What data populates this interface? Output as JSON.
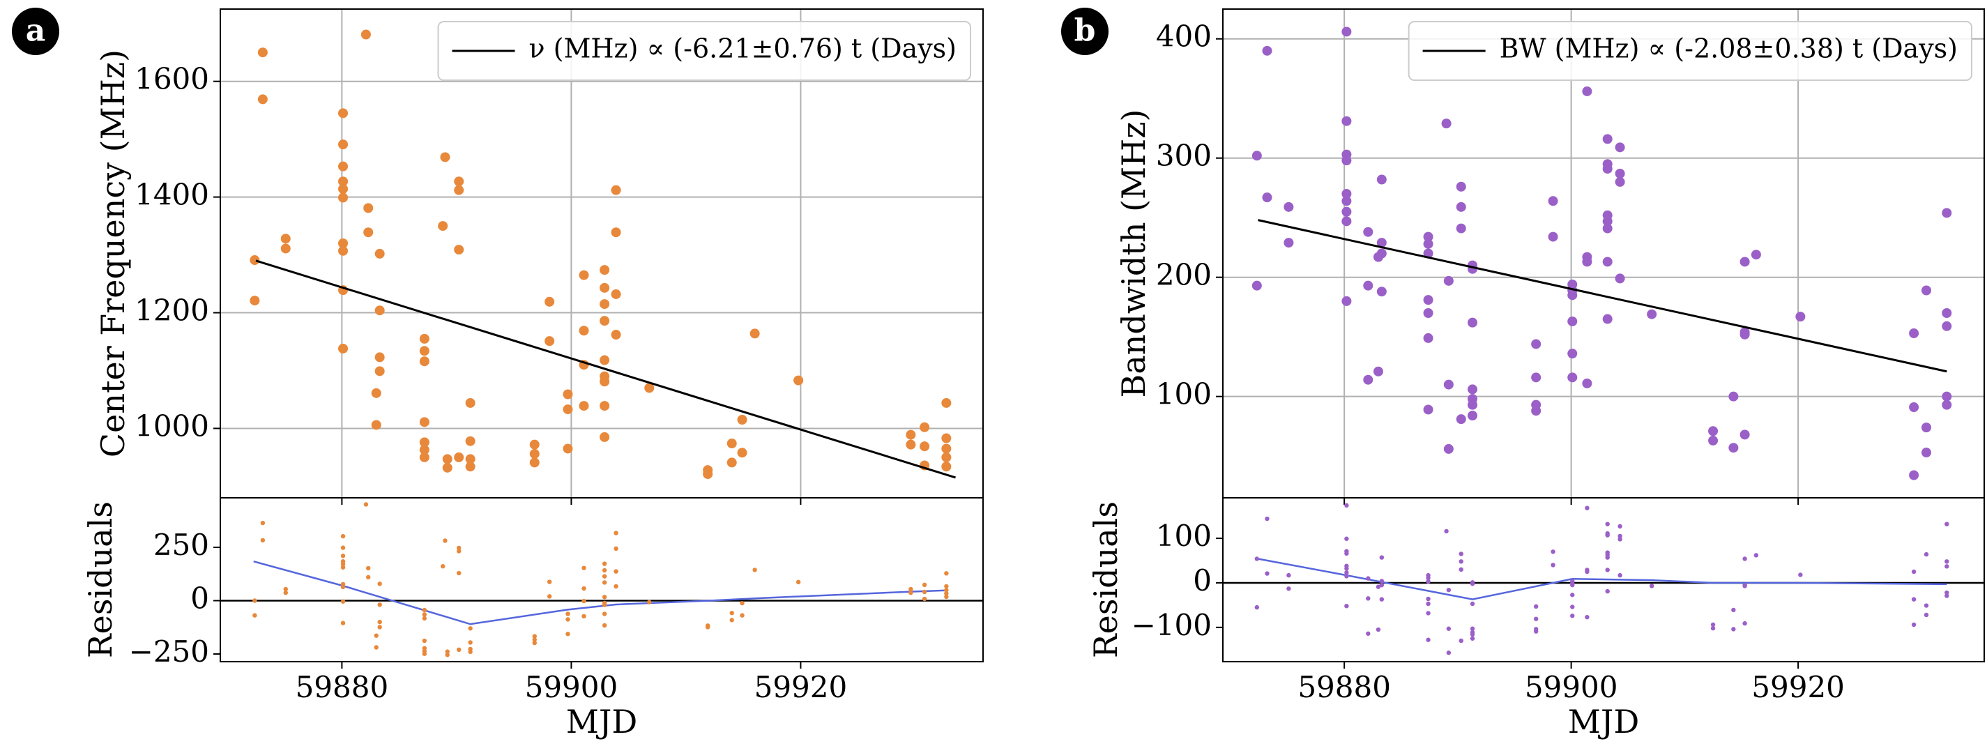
{
  "chart_data": [
    {
      "type": "scatter",
      "panel_label": "a",
      "ylabel": "Center Frequency (MHz)",
      "color": "#e8883a",
      "grid": true,
      "legend": "upper right",
      "xlim": [
        59869.4,
        59935.9
      ],
      "xticks": [
        59880,
        59900,
        59920
      ],
      "ylim": [
        880,
        1725
      ],
      "yticks": [
        1000,
        1200,
        1400,
        1600
      ],
      "x": [
        59872.4,
        59872.4,
        59873.1,
        59873.1,
        59875.1,
        59875.1,
        59882.1,
        59880.1,
        59880.1,
        59880.1,
        59880.1,
        59880.1,
        59880.1,
        59880.1,
        59880.1,
        59880.1,
        59880.1,
        59882.3,
        59882.3,
        59883.3,
        59883.3,
        59883.3,
        59883.3,
        59883,
        59883,
        59887.2,
        59887.2,
        59887.2,
        59887.2,
        59887.2,
        59887.2,
        59887.2,
        59888.8,
        59889,
        59889.2,
        59889.2,
        59890.2,
        59890.2,
        59890.2,
        59890.2,
        59891.2,
        59891.2,
        59891.2,
        59891.2,
        59896.8,
        59896.8,
        59896.8,
        59898.1,
        59898.1,
        59899.7,
        59899.7,
        59899.7,
        59901.1,
        59901.1,
        59901.1,
        59901.1,
        59902.9,
        59902.9,
        59902.9,
        59902.9,
        59902.9,
        59902.9,
        59902.9,
        59902.9,
        59902.9,
        59903.9,
        59903.9,
        59903.9,
        59903.9,
        59906.8,
        59911.9,
        59911.9,
        59914,
        59914,
        59914.9,
        59914.9,
        59916,
        59919.8,
        59929.6,
        59929.6,
        59930.8,
        59930.8,
        59930.8,
        59932.7,
        59932.7,
        59932.7,
        59932.7,
        59932.7
      ],
      "values": [
        1291,
        1221,
        1650,
        1569,
        1328,
        1311,
        1681,
        1545,
        1491,
        1453,
        1427,
        1414,
        1399,
        1320,
        1307,
        1239,
        1138,
        1381,
        1339,
        1302,
        1204,
        1123,
        1099,
        1061,
        1006,
        1155,
        1134,
        1116,
        1011,
        976,
        963,
        950,
        1350,
        1469,
        947,
        932,
        1427,
        1412,
        1309,
        950,
        1044,
        978,
        947,
        934,
        972,
        956,
        941,
        1219,
        1151,
        1059,
        1033,
        965,
        1265,
        1169,
        1110,
        1039,
        1274,
        1243,
        1215,
        1186,
        1118,
        1090,
        1081,
        1039,
        985,
        1412,
        1339,
        1232,
        1162,
        1070,
        928,
        921,
        941,
        974,
        1015,
        958,
        1164,
        1083,
        989,
        972,
        1002,
        969,
        936,
        1044,
        983,
        965,
        950,
        934
      ],
      "fit": {
        "name": "ν (MHz) ∝ (-6.21±0.76) t (Days)",
        "color": "#000000",
        "x": [
          59872.5,
          59933.5
        ],
        "values": [
          1290,
          915
        ]
      }
    },
    {
      "type": "scatter",
      "ylabel": "Residuals",
      "xlabel": "MJD",
      "color": "#e8883a",
      "grid": false,
      "xlim": [
        59869.4,
        59935.9
      ],
      "xticks": [
        59880,
        59900,
        59920
      ],
      "ylim": [
        -286,
        482
      ],
      "yticks": [
        {
          "value": -250,
          "label": "−250"
        },
        0,
        250
      ],
      "x": [
        59872.4,
        59872.4,
        59873.1,
        59873.1,
        59875.1,
        59875.1,
        59882.1,
        59880.1,
        59880.1,
        59880.1,
        59880.1,
        59880.1,
        59880.1,
        59880.1,
        59880.1,
        59880.1,
        59880.1,
        59882.3,
        59882.3,
        59883.3,
        59883.3,
        59883.3,
        59883.3,
        59883,
        59883,
        59887.2,
        59887.2,
        59887.2,
        59887.2,
        59887.2,
        59887.2,
        59887.2,
        59888.8,
        59889,
        59889.2,
        59889.2,
        59890.2,
        59890.2,
        59890.2,
        59890.2,
        59891.2,
        59891.2,
        59891.2,
        59891.2,
        59896.8,
        59896.8,
        59896.8,
        59898.1,
        59898.1,
        59899.7,
        59899.7,
        59899.7,
        59901.1,
        59901.1,
        59901.1,
        59901.1,
        59902.9,
        59902.9,
        59902.9,
        59902.9,
        59902.9,
        59902.9,
        59902.9,
        59902.9,
        59902.9,
        59903.9,
        59903.9,
        59903.9,
        59903.9,
        59906.8,
        59911.9,
        59911.9,
        59914,
        59914,
        59914.9,
        59914.9,
        59916,
        59919.8,
        59929.6,
        59929.6,
        59930.8,
        59930.8,
        59930.8,
        59932.7,
        59932.7,
        59932.7,
        59932.7,
        59932.7
      ],
      "values": [
        0,
        -69,
        364,
        283,
        54,
        37,
        451,
        302,
        248,
        210,
        184,
        171,
        156,
        77,
        64,
        -4,
        -105,
        152,
        110,
        79,
        -19,
        -100,
        -124,
        -164,
        -219,
        -44,
        -65,
        -83,
        -188,
        -223,
        -236,
        -249,
        161,
        281,
        -239,
        -254,
        247,
        232,
        129,
        -230,
        -130,
        -196,
        -227,
        -240,
        -167,
        -183,
        -198,
        88,
        20,
        -62,
        -88,
        -156,
        153,
        57,
        -2,
        -73,
        173,
        142,
        114,
        85,
        17,
        -11,
        -20,
        -62,
        -116,
        317,
        244,
        137,
        67,
        -7,
        -117,
        -124,
        -91,
        -58,
        -12,
        -69,
        144,
        87,
        54,
        37,
        74,
        41,
        8,
        128,
        67,
        49,
        34,
        18
      ],
      "trend": {
        "color": "#5566dd",
        "x": [
          59872.3,
          59880,
          59891.2,
          59899.7,
          59903.9,
          59912,
          59916.5,
          59929.6,
          59932.7
        ],
        "values": [
          184,
          71,
          -110,
          -42,
          -18,
          0,
          12,
          42,
          48
        ]
      }
    },
    {
      "type": "scatter",
      "panel_label": "b",
      "ylabel": "Bandwidth (MHz)",
      "color": "#9b5fc8",
      "grid": true,
      "legend": "upper right",
      "xlim": [
        59869.3,
        59936.4
      ],
      "xticks": [
        59880,
        59900,
        59920
      ],
      "ylim": [
        15,
        425
      ],
      "yticks": [
        100,
        200,
        300,
        400
      ],
      "x": [
        59872.3,
        59872.3,
        59873.2,
        59873.2,
        59875.1,
        59875.1,
        59880.2,
        59880.2,
        59880.2,
        59880.2,
        59880.2,
        59880.2,
        59880.2,
        59880.2,
        59880.2,
        59882.1,
        59882.1,
        59882.1,
        59883,
        59883.3,
        59883.3,
        59883.3,
        59883.3,
        59883,
        59887.4,
        59887.4,
        59887.4,
        59887.4,
        59887.4,
        59887.4,
        59887.4,
        59889,
        59889.2,
        59889.2,
        59889.2,
        59890.3,
        59890.3,
        59890.3,
        59890.3,
        59891.3,
        59891.3,
        59891.3,
        59891.3,
        59891.3,
        59891.3,
        59891.3,
        59896.9,
        59896.9,
        59896.9,
        59896.9,
        59898.4,
        59898.4,
        59900.1,
        59900.1,
        59900.1,
        59900.1,
        59900.1,
        59900.1,
        59901.4,
        59901.4,
        59901.4,
        59901.4,
        59903.2,
        59903.2,
        59903.2,
        59903.2,
        59903.2,
        59903.2,
        59903.2,
        59903.2,
        59904.3,
        59904.3,
        59904.3,
        59904.3,
        59907.1,
        59912.5,
        59912.5,
        59914.3,
        59914.3,
        59915.3,
        59915.3,
        59915.3,
        59915.3,
        59916.3,
        59920.2,
        59930.2,
        59930.2,
        59930.2,
        59931.3,
        59931.3,
        59931.3,
        59933.1,
        59933.1,
        59933.1,
        59933.1,
        59933.1
      ],
      "values": [
        302,
        193,
        390,
        267,
        259,
        229,
        406,
        331,
        303,
        298,
        270,
        264,
        255,
        247,
        180,
        238,
        193,
        114,
        121,
        282,
        229,
        220,
        188,
        217,
        234,
        228,
        220,
        181,
        170,
        149,
        89,
        329,
        197,
        110,
        56,
        276,
        259,
        241,
        81,
        210,
        207,
        162,
        106,
        98,
        93,
        84,
        144,
        116,
        93,
        88,
        264,
        234,
        194,
        189,
        185,
        163,
        136,
        116,
        217,
        213,
        111,
        356,
        316,
        295,
        291,
        252,
        247,
        241,
        213,
        165,
        309,
        287,
        280,
        199,
        169,
        71,
        63,
        100,
        57,
        213,
        154,
        152,
        68,
        219,
        167,
        153,
        91,
        34,
        189,
        74,
        53,
        254,
        170,
        159,
        100,
        93
      ],
      "fit": {
        "name": "BW (MHz) ∝ (-2.08±0.38) t (Days)",
        "color": "#000000",
        "x": [
          59872.4,
          59933.1
        ],
        "values": [
          248,
          121
        ]
      }
    },
    {
      "type": "scatter",
      "ylabel": "Residuals",
      "xlabel": "MJD",
      "color": "#9b5fc8",
      "grid": false,
      "xlim": [
        59869.3,
        59936.4
      ],
      "xticks": [
        59880,
        59900,
        59920
      ],
      "ylim": [
        -177,
        191
      ],
      "yticks": [
        {
          "value": -100,
          "label": "−100"
        },
        0,
        100
      ],
      "x": [
        59872.3,
        59872.3,
        59873.2,
        59873.2,
        59875.1,
        59875.1,
        59880.2,
        59880.2,
        59880.2,
        59880.2,
        59880.2,
        59880.2,
        59880.2,
        59880.2,
        59880.2,
        59882.1,
        59882.1,
        59882.1,
        59883,
        59883.3,
        59883.3,
        59883.3,
        59883.3,
        59883,
        59887.4,
        59887.4,
        59887.4,
        59887.4,
        59887.4,
        59887.4,
        59887.4,
        59889,
        59889.2,
        59889.2,
        59889.2,
        59890.3,
        59890.3,
        59890.3,
        59890.3,
        59891.3,
        59891.3,
        59891.3,
        59891.3,
        59891.3,
        59891.3,
        59891.3,
        59896.9,
        59896.9,
        59896.9,
        59896.9,
        59898.4,
        59898.4,
        59900.1,
        59900.1,
        59900.1,
        59900.1,
        59900.1,
        59900.1,
        59901.4,
        59901.4,
        59901.4,
        59901.4,
        59903.2,
        59903.2,
        59903.2,
        59903.2,
        59903.2,
        59903.2,
        59903.2,
        59903.2,
        59904.3,
        59904.3,
        59904.3,
        59904.3,
        59907.1,
        59912.5,
        59912.5,
        59914.3,
        59914.3,
        59915.3,
        59915.3,
        59915.3,
        59915.3,
        59916.3,
        59920.2,
        59930.2,
        59930.2,
        59930.2,
        59931.3,
        59931.3,
        59931.3,
        59933.1,
        59933.1,
        59933.1,
        59933.1,
        59933.1
      ],
      "values": [
        54,
        -55,
        144,
        21,
        17,
        -13,
        174,
        99,
        71,
        66,
        38,
        32,
        23,
        15,
        -52,
        10,
        -35,
        -114,
        -105,
        57,
        4,
        -5,
        -37,
        -9,
        17,
        11,
        3,
        -36,
        -47,
        -68,
        -128,
        116,
        -16,
        -103,
        -157,
        65,
        48,
        30,
        -130,
        1,
        -2,
        -47,
        -103,
        -111,
        -116,
        -125,
        -53,
        -81,
        -104,
        -109,
        70,
        40,
        4,
        -1,
        -5,
        -27,
        -54,
        -74,
        29,
        25,
        -77,
        168,
        132,
        111,
        107,
        68,
        63,
        57,
        29,
        -19,
        127,
        105,
        98,
        17,
        -7,
        -94,
        -102,
        -61,
        -104,
        54,
        -5,
        -7,
        -91,
        62,
        18,
        25,
        -37,
        -94,
        64,
        -51,
        -72,
        132,
        48,
        37,
        -22,
        -29
      ],
      "trend": {
        "color": "#5566dd",
        "x": [
          59872.4,
          59880.2,
          59891.3,
          59900.1,
          59907.1,
          59912.5,
          59920.2,
          59933.1
        ],
        "values": [
          54,
          17,
          -37,
          9,
          6,
          0,
          0,
          -3
        ]
      }
    }
  ]
}
